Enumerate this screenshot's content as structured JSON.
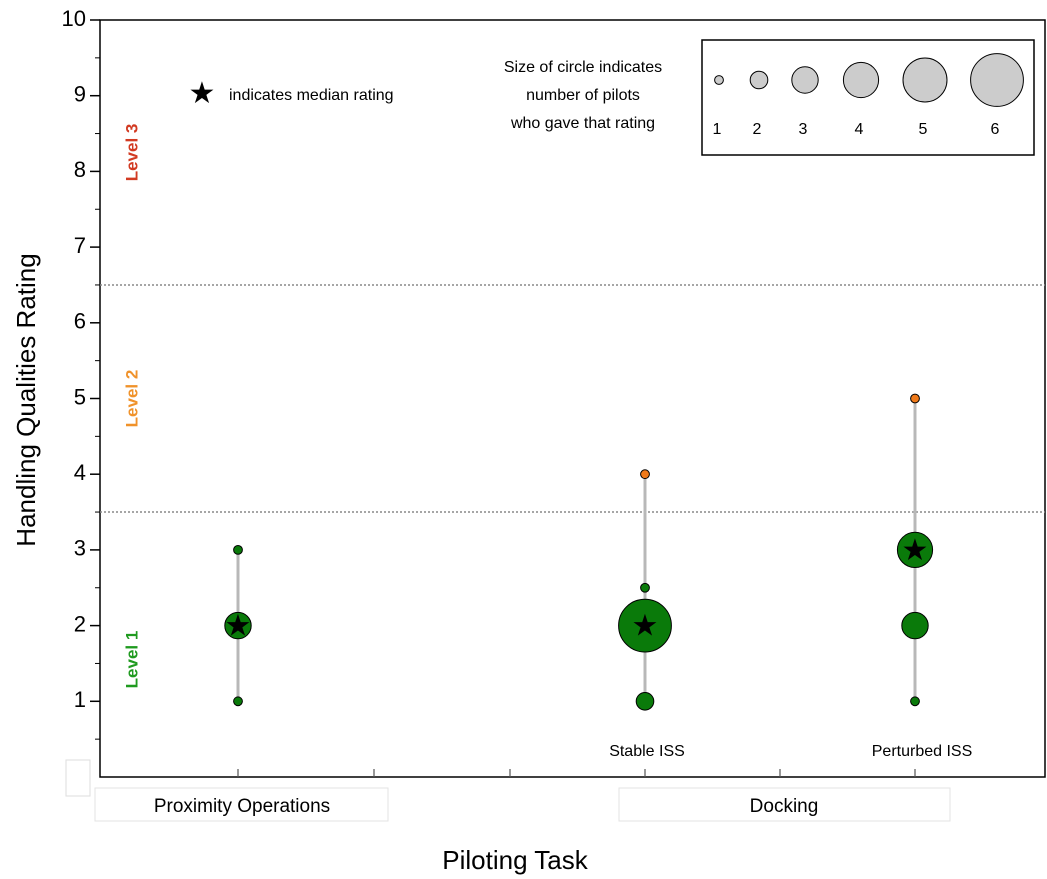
{
  "chart_data": {
    "type": "scatter",
    "title": "",
    "xlabel": "Piloting Task",
    "ylabel": "Handling Qualities Rating",
    "ylim": [
      0,
      10
    ],
    "yticks": [
      "1",
      "2",
      "3",
      "4",
      "5",
      "6",
      "7",
      "8",
      "9",
      "10"
    ],
    "groups": [
      {
        "label": "Proximity Operations",
        "subcategories": [
          ""
        ]
      },
      {
        "label": "Docking",
        "subcategories": [
          "Stable ISS",
          "Perturbed ISS"
        ]
      }
    ],
    "levels": [
      {
        "label": "Level 1",
        "color": "#1f9a1f",
        "range": [
          0,
          3.5
        ]
      },
      {
        "label": "Level 2",
        "color": "#f0922a",
        "range": [
          3.5,
          6.5
        ]
      },
      {
        "label": "Level 3",
        "color": "#d23a22",
        "range": [
          6.5,
          10
        ]
      }
    ],
    "level_boundaries": [
      3.5,
      6.5
    ],
    "series": [
      {
        "task": "Proximity Operations",
        "median": 2,
        "points": [
          {
            "rating": 1,
            "count": 1,
            "color": "#0a7a0a"
          },
          {
            "rating": 2,
            "count": 3,
            "color": "#0a7a0a"
          },
          {
            "rating": 3,
            "count": 1,
            "color": "#0a7a0a"
          }
        ]
      },
      {
        "task": "Stable ISS",
        "median": 2,
        "points": [
          {
            "rating": 1,
            "count": 2,
            "color": "#0a7a0a"
          },
          {
            "rating": 2,
            "count": 6,
            "color": "#0a7a0a"
          },
          {
            "rating": 2.5,
            "count": 1,
            "color": "#0a7a0a"
          },
          {
            "rating": 4,
            "count": 1,
            "color": "#f07a1a"
          }
        ]
      },
      {
        "task": "Perturbed ISS",
        "median": 3,
        "points": [
          {
            "rating": 1,
            "count": 1,
            "color": "#0a7a0a"
          },
          {
            "rating": 2,
            "count": 3,
            "color": "#0a7a0a"
          },
          {
            "rating": 3,
            "count": 4,
            "color": "#0a7a0a"
          },
          {
            "rating": 5,
            "count": 1,
            "color": "#f07a1a"
          }
        ]
      }
    ],
    "median_note": "indicates median rating",
    "size_legend": {
      "lines": [
        "Size of circle indicates",
        "number of pilots",
        "who gave that rating"
      ],
      "counts": [
        "1",
        "2",
        "3",
        "4",
        "5",
        "6"
      ],
      "fill": "#cccccc"
    }
  }
}
